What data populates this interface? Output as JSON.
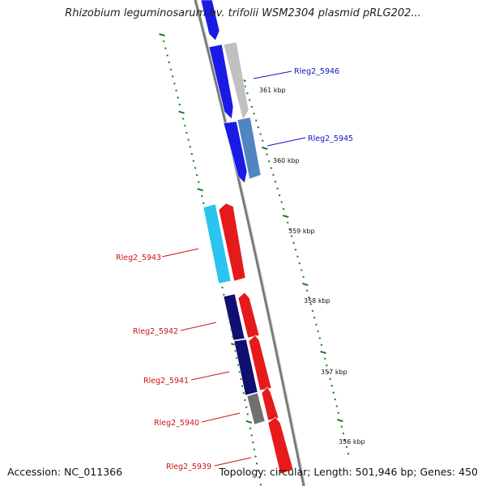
{
  "title": "Rhizobium leguminosarum bv. trifolii WSM2304 plasmid pRLG202...",
  "footer": {
    "accession": "Accession: NC_011366",
    "summary": "Topology: circular; Length: 501,946 bp; Genes: 450"
  },
  "colors": {
    "backbone": "#7a7a7a",
    "ticks": "#1f7a1f",
    "forward_label": "#1414c8",
    "reverse_label": "#cc1414"
  },
  "scale": {
    "tick_labels": [
      "361 kbp",
      "360 kbp",
      "359 kbp",
      "358 kbp",
      "357 kbp",
      "356 kbp"
    ]
  },
  "genes": [
    {
      "label": "",
      "color": "#1a1ae6",
      "strand": "forward"
    },
    {
      "label": "",
      "color": "#1a1ae6",
      "strand": "forward"
    },
    {
      "label": "Rleg2_5946",
      "color": "#c0c0c0",
      "strand": "forward"
    },
    {
      "label": "",
      "color": "#1a1ae6",
      "strand": "forward"
    },
    {
      "label": "Rleg2_5945",
      "color": "#4f86c2",
      "strand": "forward"
    },
    {
      "label": "Rleg2_5943",
      "color": "#29c4f0",
      "strand": "forward"
    },
    {
      "label": "",
      "color": "#e61a1a",
      "strand": "reverse"
    },
    {
      "label": "Rleg2_5942",
      "color": "#101070",
      "strand": "forward"
    },
    {
      "label": "",
      "color": "#e61a1a",
      "strand": "reverse"
    },
    {
      "label": "Rleg2_5941",
      "color": "#101070",
      "strand": "forward"
    },
    {
      "label": "",
      "color": "#e61a1a",
      "strand": "reverse"
    },
    {
      "label": "Rleg2_5940",
      "color": "#707070",
      "strand": "forward"
    },
    {
      "label": "",
      "color": "#e61a1a",
      "strand": "reverse"
    },
    {
      "label": "Rleg2_5939",
      "color": "#e61a1a",
      "strand": "reverse"
    }
  ]
}
